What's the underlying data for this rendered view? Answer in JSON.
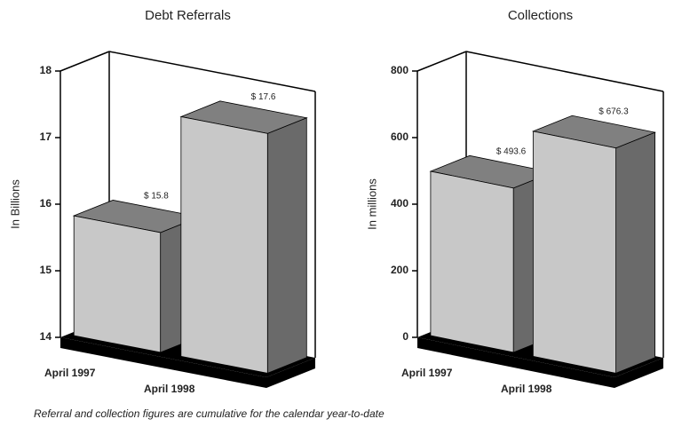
{
  "chart_data": [
    {
      "type": "bar3d",
      "title": "Debt Referrals",
      "y_label": "In Billions",
      "categories": [
        "April 1997",
        "April 1998"
      ],
      "values": [
        15.8,
        17.6
      ],
      "value_labels": [
        "$ 15.8",
        "$ 17.6"
      ],
      "ylim": [
        14,
        18
      ],
      "yticks": [
        14,
        15,
        16,
        17,
        18
      ],
      "color": "#c8c8c8"
    },
    {
      "type": "bar3d",
      "title": "Collections",
      "y_label": "In millions",
      "categories": [
        "April 1997",
        "April 1998"
      ],
      "values": [
        493.6,
        676.3
      ],
      "value_labels": [
        "$ 493.6",
        "$ 676.3"
      ],
      "ylim": [
        0,
        800
      ],
      "yticks": [
        0,
        200,
        400,
        600,
        800
      ],
      "color": "#c8c8c8"
    }
  ],
  "footnote": "Referral and collection figures are cumulative for the calendar year-to-date"
}
